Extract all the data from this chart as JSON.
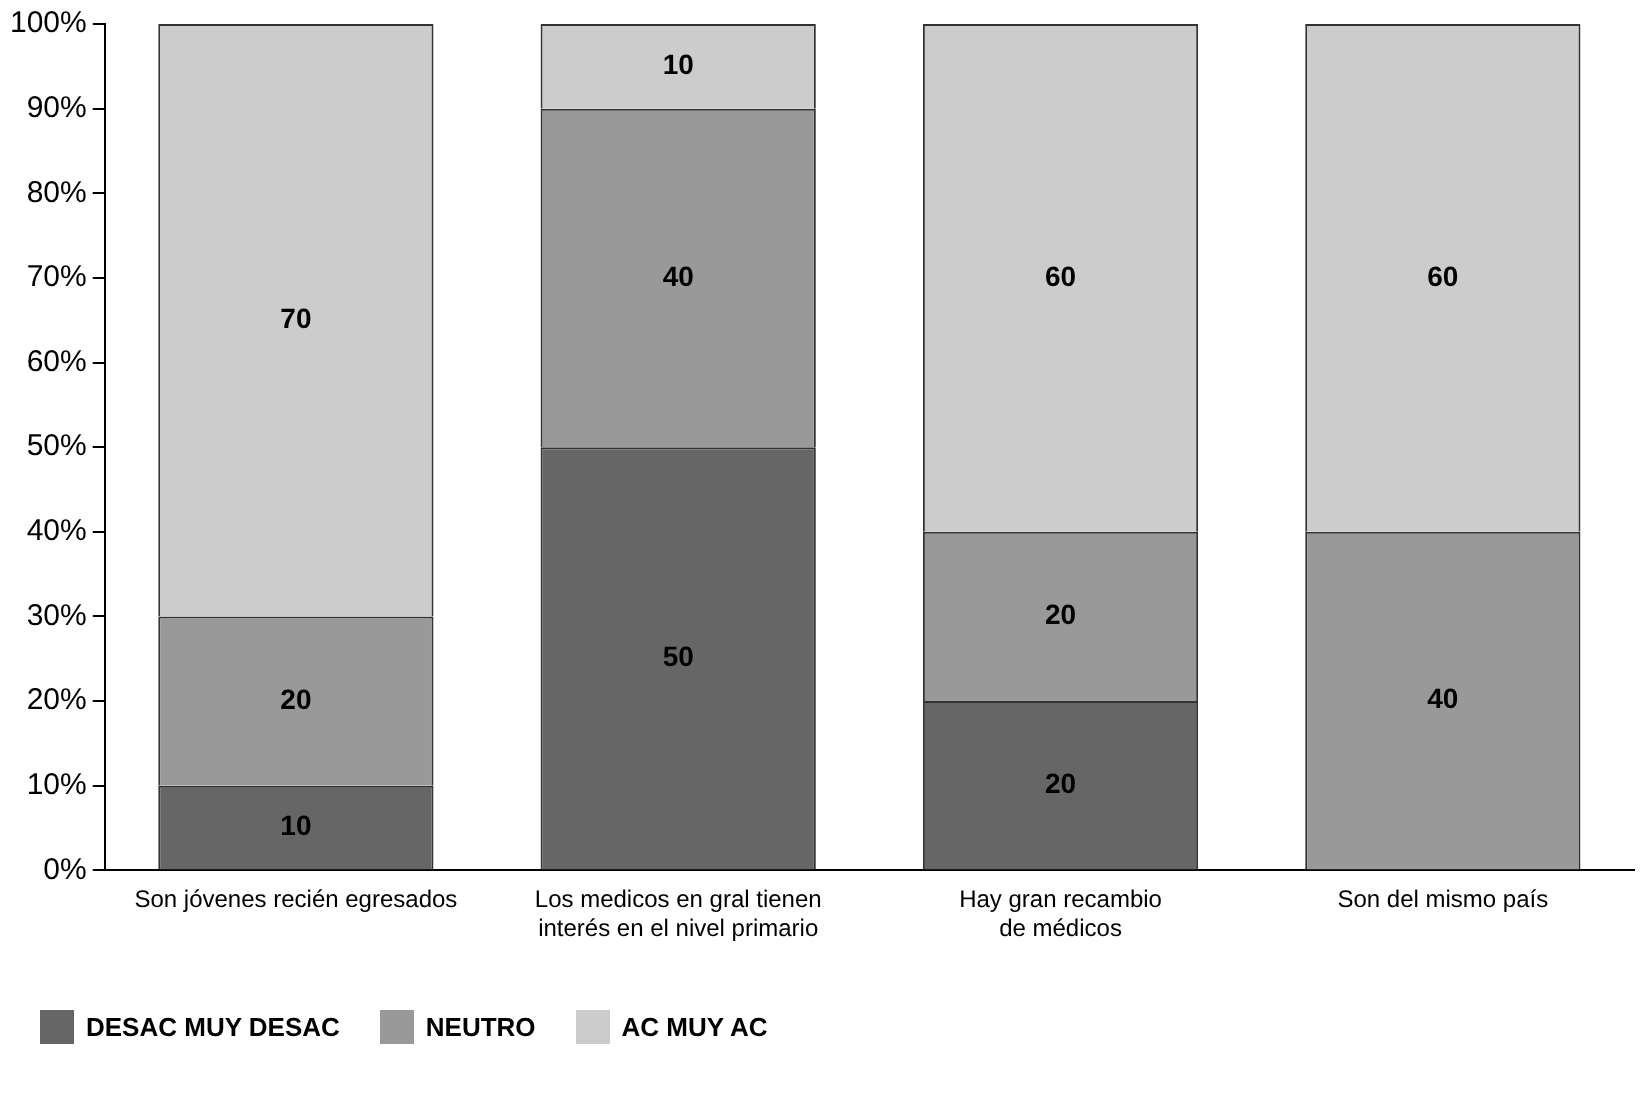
{
  "chart_data": {
    "type": "bar",
    "stacked": true,
    "categories": [
      "Son jóvenes recién egresados",
      "Los medicos en gral tienen\ninterés en el nivel primario",
      "Hay gran recambio\nde médicos",
      "Son del mismo país"
    ],
    "series": [
      {
        "name": "DESAC MUY DESAC",
        "color": "#666666",
        "values": [
          10,
          50,
          20,
          0
        ],
        "value_labels": [
          "10",
          "50",
          "20",
          null
        ]
      },
      {
        "name": "NEUTRO",
        "color": "#999999",
        "values": [
          20,
          40,
          20,
          40
        ],
        "value_labels": [
          "20",
          "40",
          "20",
          "40"
        ]
      },
      {
        "name": "AC MUY AC",
        "color": "#cccccc",
        "values": [
          70,
          10,
          60,
          60
        ],
        "value_labels": [
          "70",
          "10",
          "60",
          "60"
        ]
      }
    ],
    "ylim": [
      0,
      100
    ],
    "yticks": [
      {
        "value": 0,
        "label": "0%"
      },
      {
        "value": 10,
        "label": "10%"
      },
      {
        "value": 20,
        "label": "20%"
      },
      {
        "value": 30,
        "label": "30%"
      },
      {
        "value": 40,
        "label": "40%"
      },
      {
        "value": 50,
        "label": "50%"
      },
      {
        "value": 60,
        "label": "60%"
      },
      {
        "value": 70,
        "label": "70%"
      },
      {
        "value": 80,
        "label": "80%"
      },
      {
        "value": 90,
        "label": "90%"
      },
      {
        "value": 100,
        "label": "100%"
      }
    ],
    "grid": false,
    "legend": "bottom left"
  }
}
